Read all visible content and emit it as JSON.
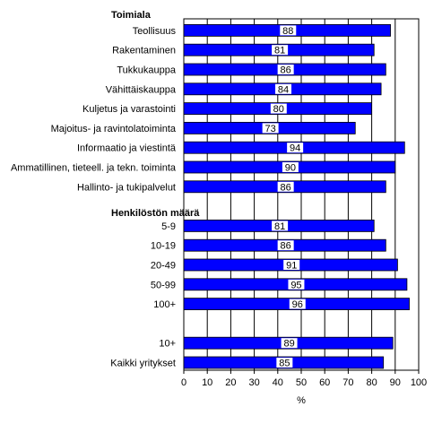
{
  "chart_data": {
    "type": "bar",
    "orientation": "horizontal",
    "xlabel": "%",
    "xlim": [
      0,
      100
    ],
    "xticks": [
      0,
      10,
      20,
      30,
      40,
      50,
      60,
      70,
      80,
      90,
      100
    ],
    "grid": "vertical",
    "bar_color": "#0000FF",
    "groups": [
      {
        "title": "Toimiala",
        "categories": [
          "Teollisuus",
          "Rakentaminen",
          "Tukkukauppa",
          "Vähittäiskauppa",
          "Kuljetus ja varastointi",
          "Majoitus- ja ravintolatoiminta",
          "Informaatio ja viestintä",
          "Ammatillinen, tieteell. ja tekn. toiminta",
          "Hallinto- ja tukipalvelut"
        ],
        "values": [
          88,
          81,
          86,
          84,
          80,
          73,
          94,
          90,
          86
        ]
      },
      {
        "title": "Henkilöstön määrä",
        "categories": [
          "5-9",
          "10-19",
          "20-49",
          "50-99",
          "100+"
        ],
        "values": [
          81,
          86,
          91,
          95,
          96
        ]
      },
      {
        "title": "",
        "categories": [
          "10+",
          "Kaikki yritykset"
        ],
        "values": [
          89,
          85
        ]
      }
    ]
  }
}
